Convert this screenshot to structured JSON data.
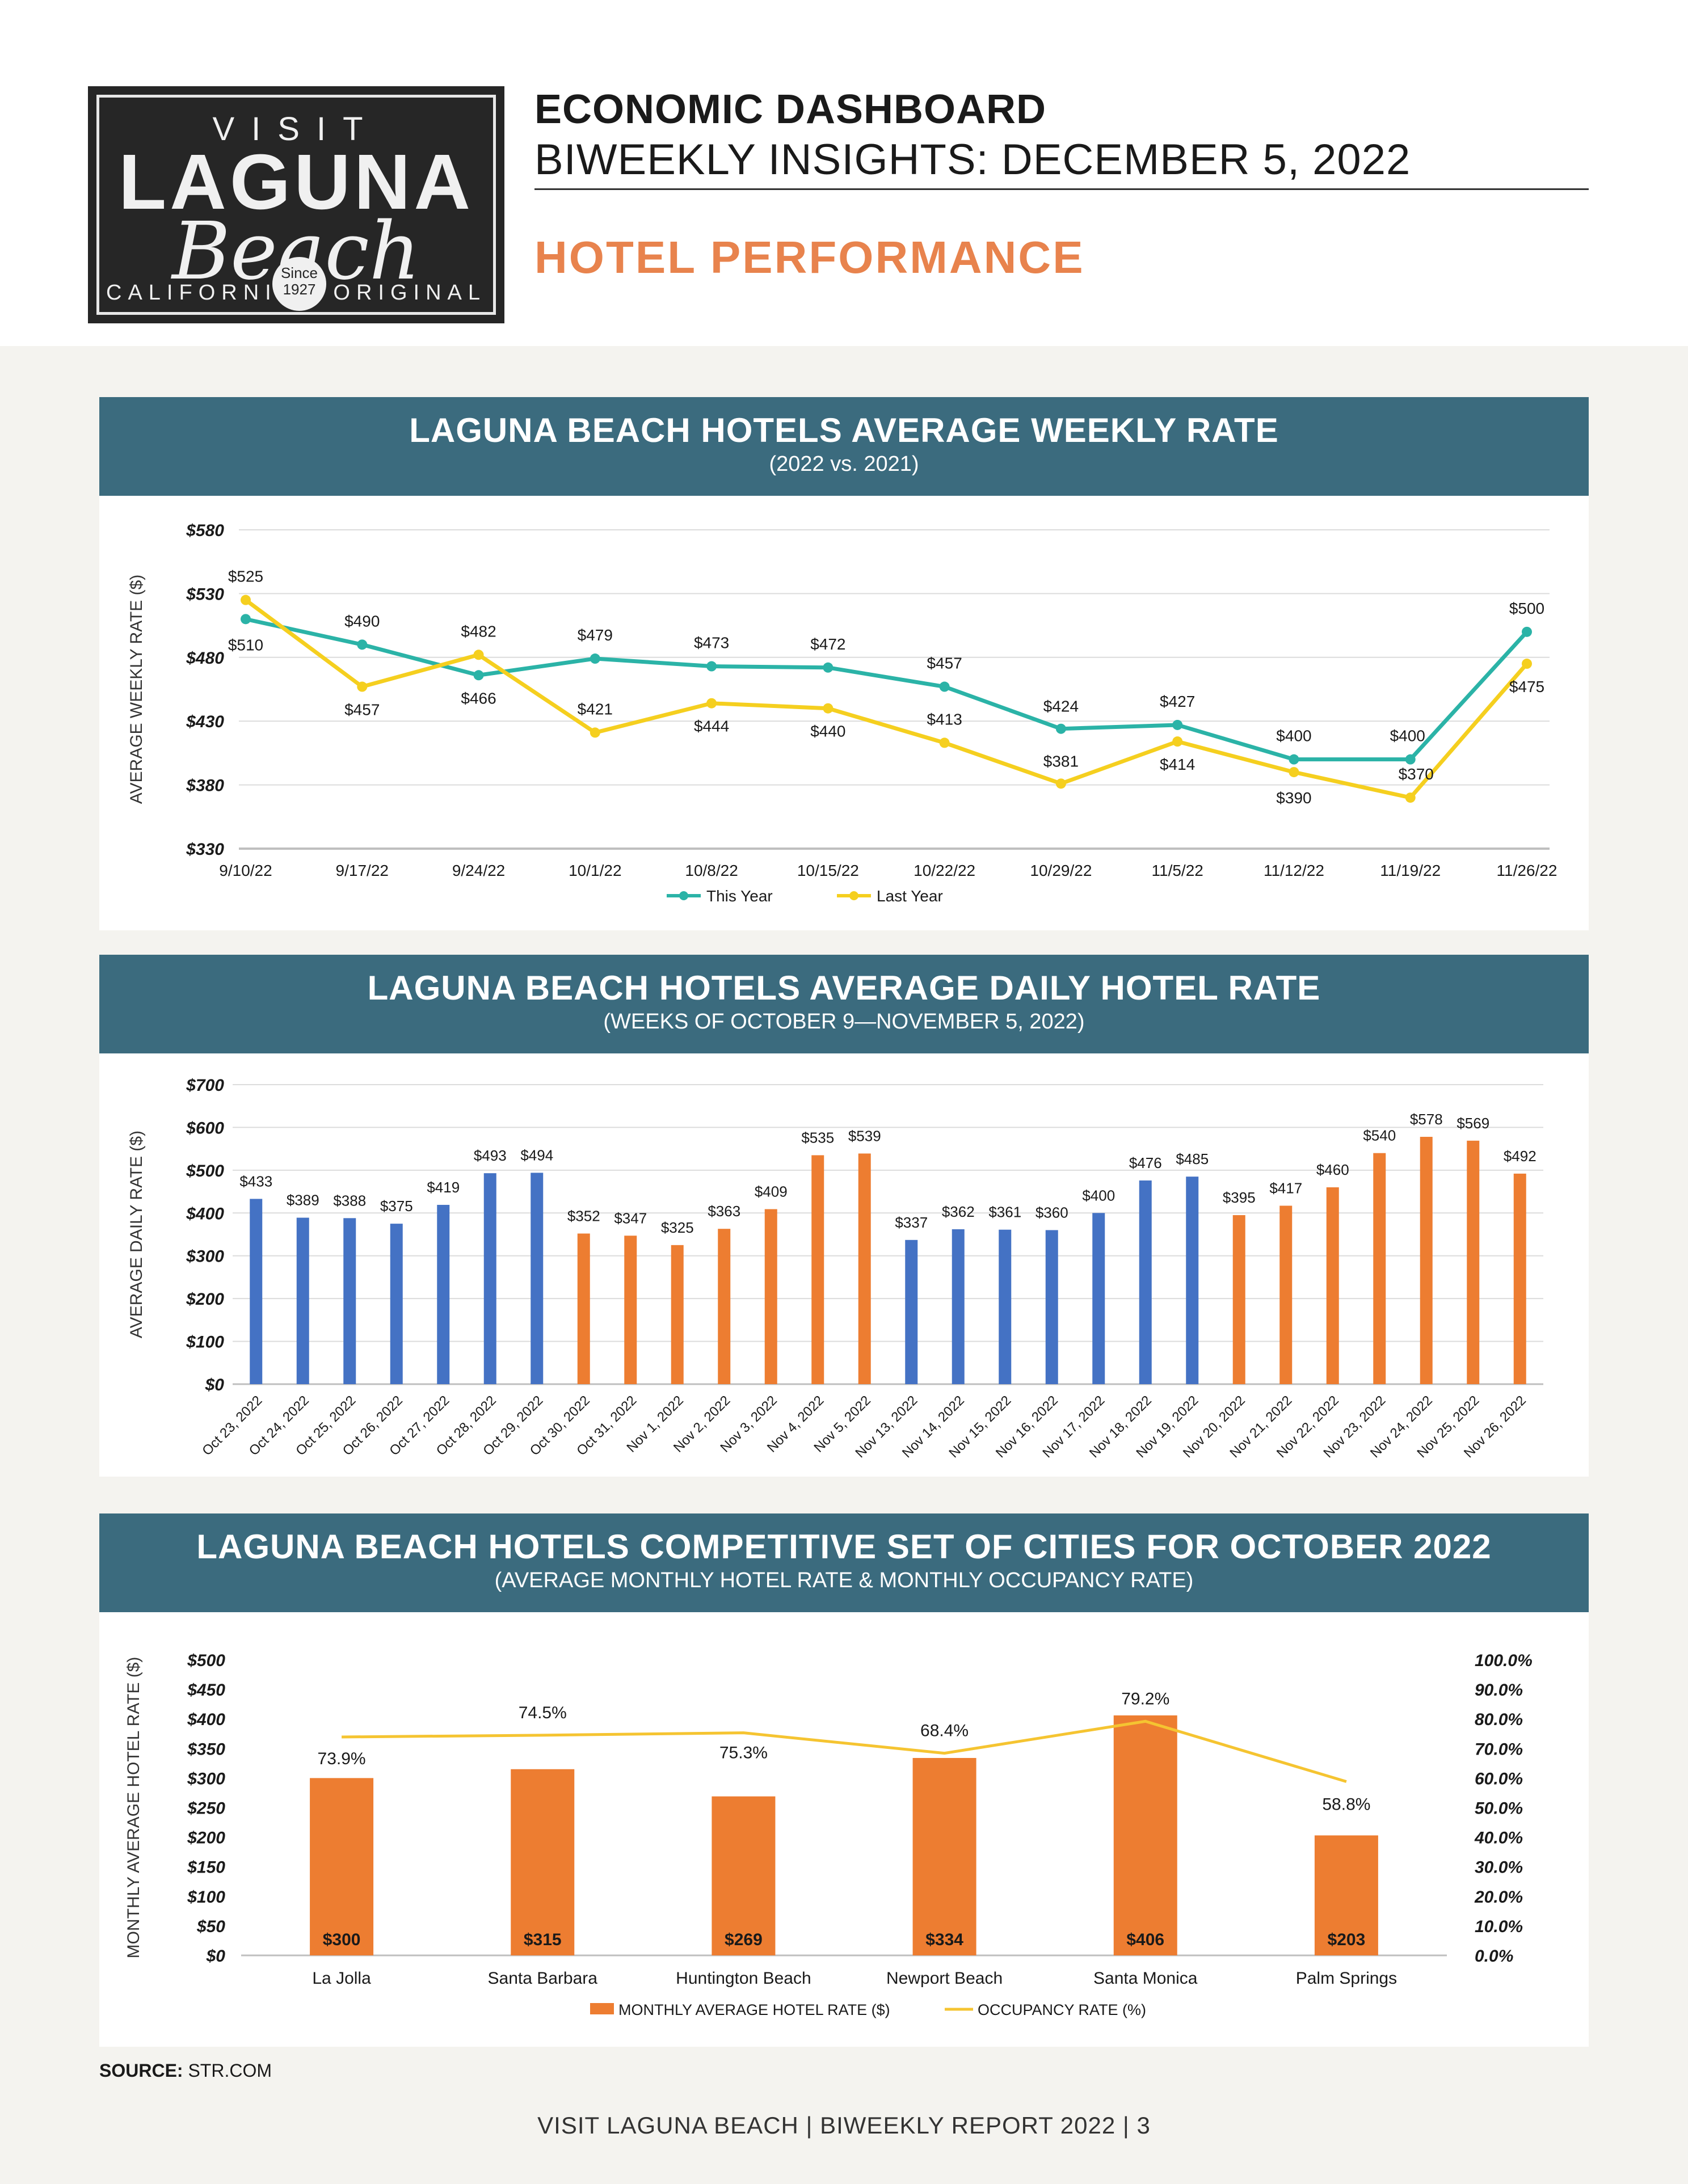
{
  "logo": {
    "visit": "VISIT",
    "laguna": "LAGUNA",
    "beach": "Beach",
    "california": "CALIFORNIA",
    "original": "ORIGINAL",
    "since": "Since",
    "year": "1927"
  },
  "header": {
    "title": "ECONOMIC DASHBOARD",
    "subtitle": "BIWEEKLY INSIGHTS: DECEMBER 5, 2022",
    "section": "HOTEL PERFORMANCE"
  },
  "source": {
    "label": "SOURCE:",
    "value": " STR.COM"
  },
  "footer": "VISIT LAGUNA BEACH  |  BIWEEKLY REPORT 2022  |  3",
  "chart_data": [
    {
      "type": "line",
      "title": "LAGUNA BEACH HOTELS AVERAGE WEEKLY RATE",
      "subtitle": "(2022 vs. 2021)",
      "ylabel": "AVERAGE WEEKLY RATE ($)",
      "ylim": [
        330,
        580
      ],
      "yticks": [
        "$330",
        "$380",
        "$430",
        "$480",
        "$530",
        "$580"
      ],
      "x": [
        "9/10/22",
        "9/17/22",
        "9/24/22",
        "10/1/22",
        "10/8/22",
        "10/15/22",
        "10/22/22",
        "10/29/22",
        "11/5/22",
        "11/12/22",
        "11/19/22",
        "11/26/22"
      ],
      "series": [
        {
          "name": "This Year",
          "color": "#2bb3a7",
          "values": [
            510,
            490,
            466,
            479,
            473,
            472,
            457,
            424,
            427,
            400,
            400,
            500
          ],
          "labels": [
            "$510",
            "$490",
            "$466",
            "$479",
            "$473",
            "$472",
            "$457",
            "$424",
            "$427",
            "$400",
            "$400",
            "$500"
          ]
        },
        {
          "name": "Last Year",
          "color": "#f5cf1f",
          "values": [
            525,
            457,
            482,
            421,
            444,
            440,
            413,
            381,
            414,
            390,
            370,
            475
          ],
          "labels": [
            "$525",
            "$457",
            "$482",
            "$421",
            "$444",
            "$440",
            "$413",
            "$381",
            "$414",
            "$390",
            "$370",
            "$475"
          ]
        }
      ],
      "legend": "bottom"
    },
    {
      "type": "bar",
      "title": "LAGUNA BEACH HOTELS AVERAGE DAILY HOTEL RATE",
      "subtitle": "(WEEKS OF OCTOBER 9—NOVEMBER 5, 2022)",
      "ylabel": "AVERAGE DAILY RATE ($)",
      "ylim": [
        0,
        700
      ],
      "yticks": [
        "$0",
        "$100",
        "$200",
        "$300",
        "$400",
        "$500",
        "$600",
        "$700"
      ],
      "categories": [
        "Oct 23, 2022",
        "Oct 24, 2022",
        "Oct 25, 2022",
        "Oct 26, 2022",
        "Oct 27, 2022",
        "Oct 28, 2022",
        "Oct 29, 2022",
        "Oct 30, 2022",
        "Oct 31, 2022",
        "Nov 1, 2022",
        "Nov 2, 2022",
        "Nov 3, 2022",
        "Nov 4, 2022",
        "Nov 5, 2022",
        "Nov 13, 2022",
        "Nov 14, 2022",
        "Nov 15, 2022",
        "Nov 16, 2022",
        "Nov 17, 2022",
        "Nov 18, 2022",
        "Nov 19, 2022",
        "Nov 20, 2022",
        "Nov 21, 2022",
        "Nov 22, 2022",
        "Nov 23, 2022",
        "Nov 24, 2022",
        "Nov 25, 2022",
        "Nov 26, 2022"
      ],
      "values": [
        433,
        389,
        388,
        375,
        419,
        493,
        494,
        352,
        347,
        325,
        363,
        409,
        535,
        539,
        337,
        362,
        361,
        360,
        400,
        476,
        485,
        395,
        417,
        460,
        540,
        578,
        569,
        492
      ],
      "labels": [
        "$433",
        "$389",
        "$388",
        "$375",
        "$419",
        "$493",
        "$494",
        "$352",
        "$347",
        "$325",
        "$363",
        "$409",
        "$535",
        "$539",
        "$337",
        "$362",
        "$361",
        "$360",
        "$400",
        "$476",
        "$485",
        "$395",
        "$417",
        "$460",
        "$540",
        "$578",
        "$569",
        "$492"
      ],
      "colors": [
        "#4472c4",
        "#4472c4",
        "#4472c4",
        "#4472c4",
        "#4472c4",
        "#4472c4",
        "#4472c4",
        "#ed7d31",
        "#ed7d31",
        "#ed7d31",
        "#ed7d31",
        "#ed7d31",
        "#ed7d31",
        "#ed7d31",
        "#4472c4",
        "#4472c4",
        "#4472c4",
        "#4472c4",
        "#4472c4",
        "#4472c4",
        "#4472c4",
        "#ed7d31",
        "#ed7d31",
        "#ed7d31",
        "#ed7d31",
        "#ed7d31",
        "#ed7d31",
        "#ed7d31"
      ]
    },
    {
      "type": "bar",
      "title": "LAGUNA BEACH HOTELS COMPETITIVE SET OF CITIES FOR OCTOBER 2022",
      "subtitle": "(AVERAGE MONTHLY HOTEL RATE & MONTHLY OCCUPANCY RATE)",
      "ylabel": "MONTHLY AVERAGE HOTEL RATE ($)",
      "ylim": [
        0,
        500
      ],
      "yticks": [
        "$0",
        "$50",
        "$100",
        "$150",
        "$200",
        "$250",
        "$300",
        "$350",
        "$400",
        "$450",
        "$500"
      ],
      "y2lim": [
        0,
        100
      ],
      "y2ticks": [
        "0.0%",
        "10.0%",
        "20.0%",
        "30.0%",
        "40.0%",
        "50.0%",
        "60.0%",
        "70.0%",
        "80.0%",
        "90.0%",
        "100.0%"
      ],
      "categories": [
        "La Jolla",
        "Santa Barbara",
        "Huntington Beach",
        "Newport Beach",
        "Santa Monica",
        "Palm Springs"
      ],
      "series": [
        {
          "name": "MONTHLY AVERAGE HOTEL RATE ($)",
          "type": "bar",
          "color": "#ed7d31",
          "values": [
            300,
            315,
            269,
            334,
            406,
            203
          ],
          "labels": [
            "$300",
            "$315",
            "$269",
            "$334",
            "$406",
            "$203"
          ]
        },
        {
          "name": "OCCUPANCY RATE (%)",
          "type": "line",
          "axis": "right",
          "color": "#f5c431",
          "values": [
            73.9,
            74.5,
            75.3,
            68.4,
            79.2,
            58.8
          ],
          "labels": [
            "73.9%",
            "74.5%",
            "75.3%",
            "68.4%",
            "79.2%",
            "58.8%"
          ]
        }
      ],
      "legend": "bottom"
    }
  ]
}
